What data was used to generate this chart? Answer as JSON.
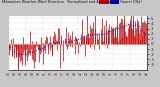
{
  "bg_color": "#c8c8c8",
  "plot_bg_color": "#ffffff",
  "grid_color": "#b0b0b0",
  "bar_color": "#cc0000",
  "avg_color": "#0000cc",
  "ylim": [
    -5.0,
    5.5
  ],
  "yticks": [
    -4,
    -3,
    -2,
    -1,
    0,
    1,
    2,
    3,
    4,
    5
  ],
  "n_points": 200,
  "seed": 42,
  "legend_red_label": "Normalized",
  "legend_blue_label": "Average",
  "legend_colors": [
    "#cc0000",
    "#0000cc"
  ],
  "title_color": "#111111",
  "n_vgrid": 8,
  "avg_smooth": 25
}
